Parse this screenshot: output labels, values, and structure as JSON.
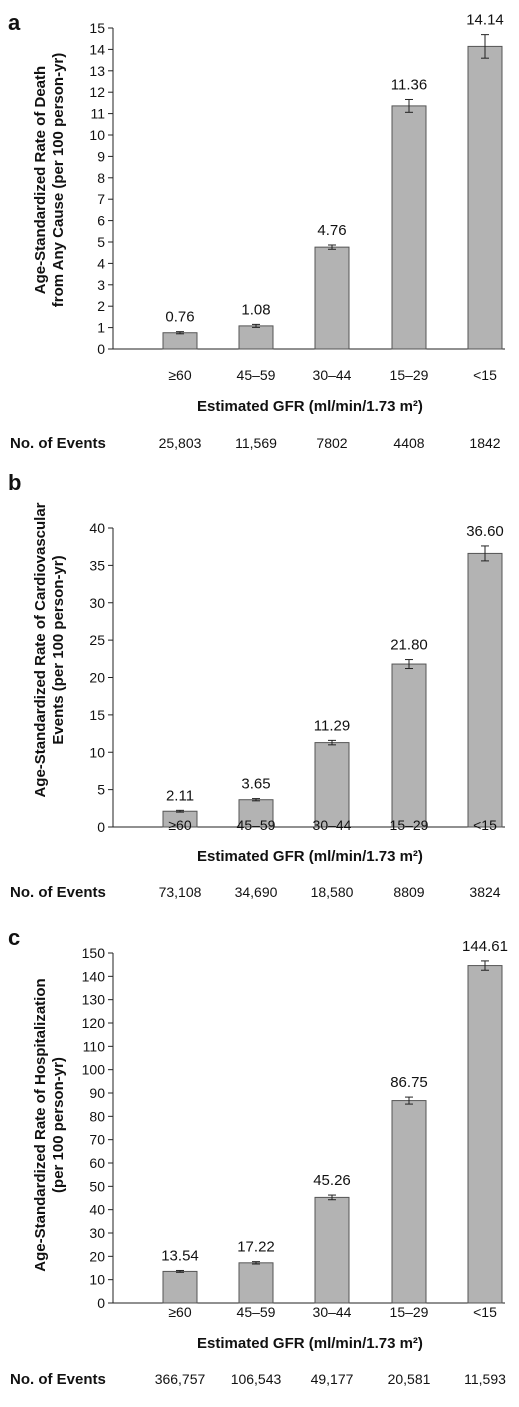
{
  "xlabel": "Estimated GFR (ml/min/1.73 m²)",
  "events_label": "No. of Events",
  "categories": [
    "≥60",
    "45–59",
    "30–44",
    "15–29",
    "<15"
  ],
  "colors": {
    "bar": "#b3b3b3",
    "bar_edge": "#555555"
  },
  "chart_data": [
    {
      "type": "bar",
      "panel": "a",
      "ylabel": "Age-Standardized Rate of Death\nfrom Any Cause (per 100 person-yr)",
      "xlabel": "Estimated GFR (ml/min/1.73 m²)",
      "categories": [
        "≥60",
        "45–59",
        "30–44",
        "15–29",
        "<15"
      ],
      "values": [
        0.76,
        1.08,
        4.76,
        11.36,
        14.14
      ],
      "labels": [
        "0.76",
        "1.08",
        "4.76",
        "11.36",
        "14.14"
      ],
      "error": [
        0.05,
        0.07,
        0.1,
        0.3,
        0.55
      ],
      "ylim": [
        0,
        15
      ],
      "yticks": [
        0,
        1,
        2,
        3,
        4,
        5,
        6,
        7,
        8,
        9,
        10,
        11,
        12,
        13,
        14,
        15
      ],
      "events": [
        "25,803",
        "11,569",
        "7802",
        "4408",
        "1842"
      ]
    },
    {
      "type": "bar",
      "panel": "b",
      "ylabel": "Age-Standardized Rate of Cardiovascular\nEvents (per 100 person-yr)",
      "xlabel": "Estimated GFR (ml/min/1.73 m²)",
      "categories": [
        "≥60",
        "45–59",
        "30–44",
        "15–29",
        "<15"
      ],
      "values": [
        2.11,
        3.65,
        11.29,
        21.8,
        36.6
      ],
      "labels": [
        "2.11",
        "3.65",
        "11.29",
        "21.80",
        "36.60"
      ],
      "error": [
        0.12,
        0.15,
        0.3,
        0.6,
        1.0
      ],
      "ylim": [
        0,
        40
      ],
      "yticks": [
        0,
        5,
        10,
        15,
        20,
        25,
        30,
        35,
        40
      ],
      "events": [
        "73,108",
        "34,690",
        "18,580",
        "8809",
        "3824"
      ]
    },
    {
      "type": "bar",
      "panel": "c",
      "ylabel": "Age-Standardized Rate of Hospitalization\n(per 100 person-yr)",
      "xlabel": "Estimated GFR (ml/min/1.73 m²)",
      "categories": [
        "≥60",
        "45–59",
        "30–44",
        "15–29",
        "<15"
      ],
      "values": [
        13.54,
        17.22,
        45.26,
        86.75,
        144.61
      ],
      "labels": [
        "13.54",
        "17.22",
        "45.26",
        "86.75",
        "144.61"
      ],
      "error": [
        0.4,
        0.5,
        1.0,
        1.5,
        2.0
      ],
      "ylim": [
        0,
        150
      ],
      "yticks": [
        0,
        10,
        20,
        30,
        40,
        50,
        60,
        70,
        80,
        90,
        100,
        110,
        120,
        130,
        140,
        150
      ],
      "events": [
        "366,757",
        "106,543",
        "49,177",
        "20,581",
        "11,593"
      ]
    }
  ]
}
